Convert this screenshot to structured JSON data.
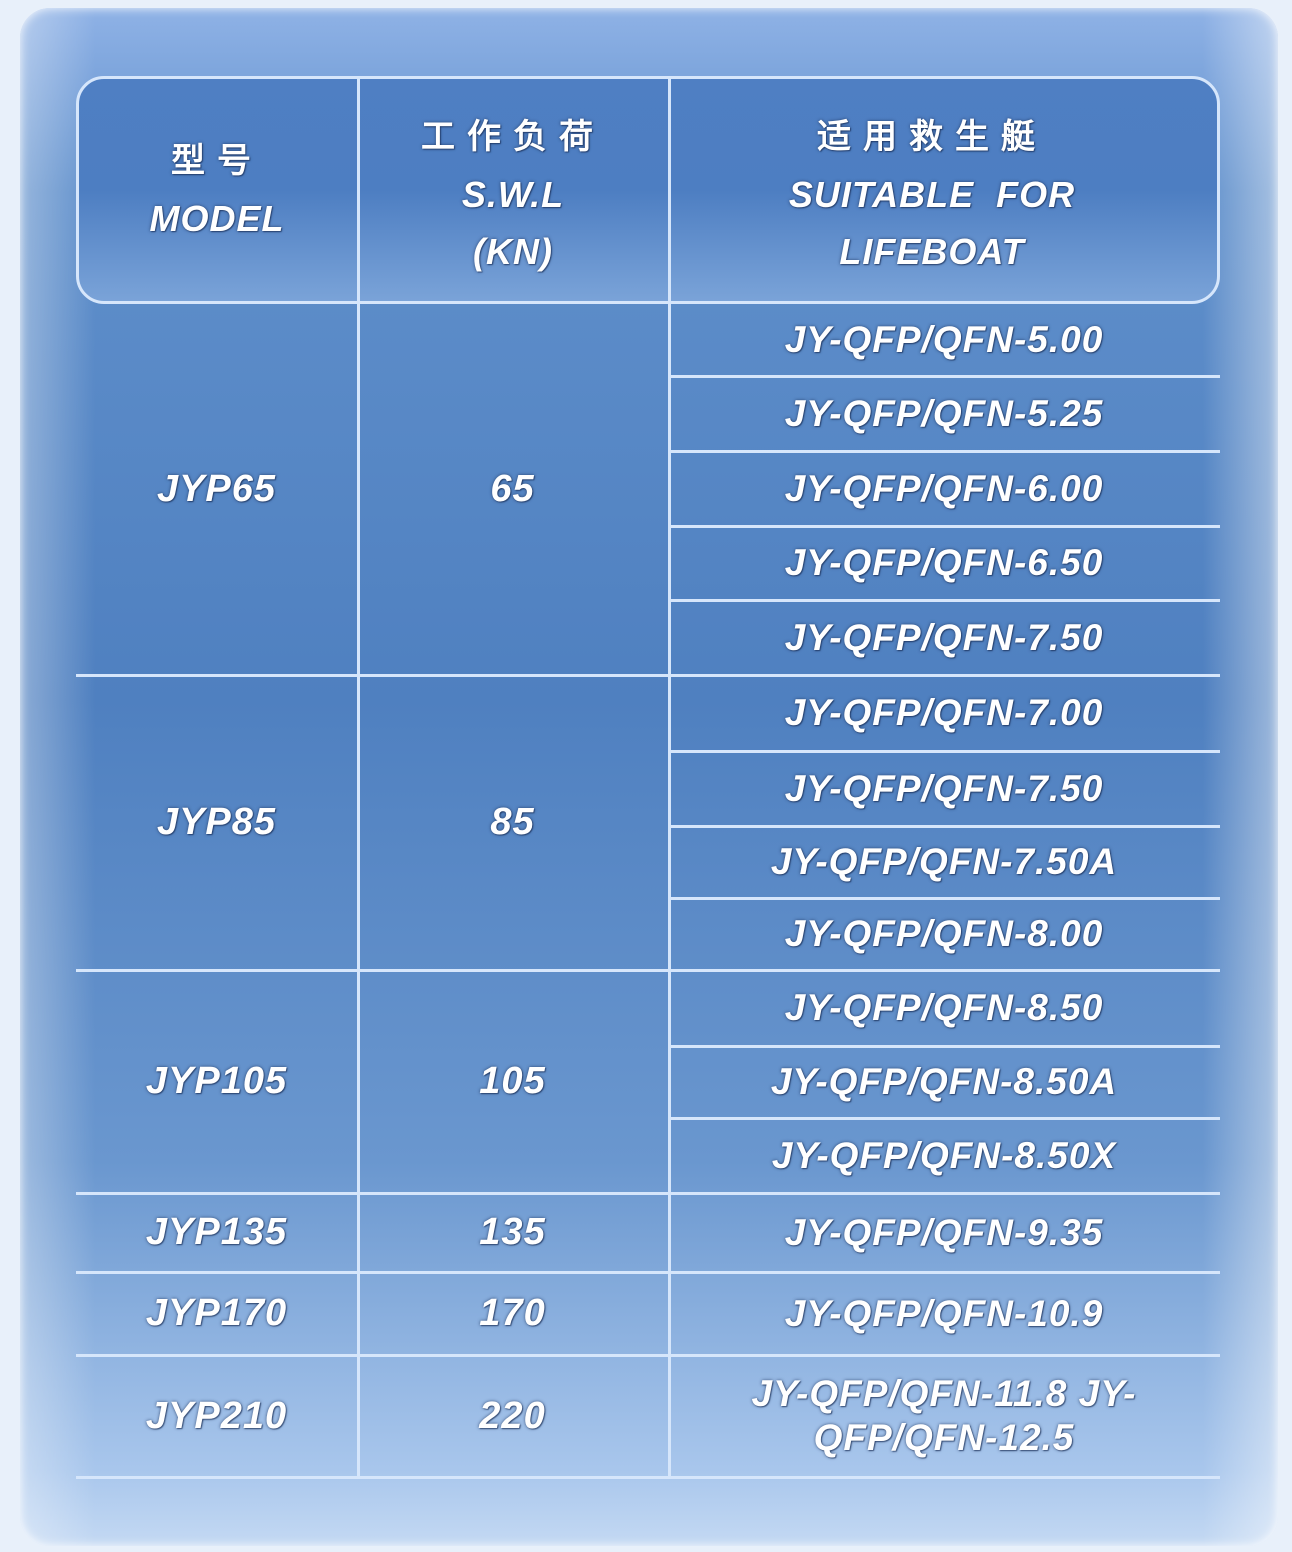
{
  "header": {
    "model_zh": "型号",
    "model_en": "MODEL",
    "swl_zh": "工作负荷",
    "swl_en": "S.W.L",
    "swl_unit": "(KN)",
    "lifeboat_zh": "适用救生艇",
    "lifeboat_en1": "SUITABLE  FOR",
    "lifeboat_en2": "LIFEBOAT"
  },
  "groups": [
    {
      "model": "JYP65",
      "swl": "65",
      "lifeboats": [
        "JY-QFP/QFN-5.00",
        "JY-QFP/QFN-5.25",
        "JY-QFP/QFN-6.00",
        "JY-QFP/QFN-6.50",
        "JY-QFP/QFN-7.50"
      ]
    },
    {
      "model": "JYP85",
      "swl": "85",
      "lifeboats": [
        "JY-QFP/QFN-7.00",
        "JY-QFP/QFN-7.50",
        "JY-QFP/QFN-7.50A",
        "JY-QFP/QFN-8.00"
      ]
    },
    {
      "model": "JYP105",
      "swl": "105",
      "lifeboats": [
        "JY-QFP/QFN-8.50",
        "JY-QFP/QFN-8.50A",
        "JY-QFP/QFN-8.50X"
      ]
    },
    {
      "model": "JYP135",
      "swl": "135",
      "lifeboats": [
        "JY-QFP/QFN-9.35"
      ]
    },
    {
      "model": "JYP170",
      "swl": "170",
      "lifeboats": [
        "JY-QFP/QFN-10.9"
      ]
    },
    {
      "model": "JYP210",
      "swl": "220",
      "lifeboats": [
        "JY-QFP/QFN-11.8 JY-QFP/QFN-12.5"
      ]
    }
  ],
  "colors": {
    "panel": "#5585c4",
    "lines": "#d6e6fb",
    "text": "#ffffff"
  }
}
